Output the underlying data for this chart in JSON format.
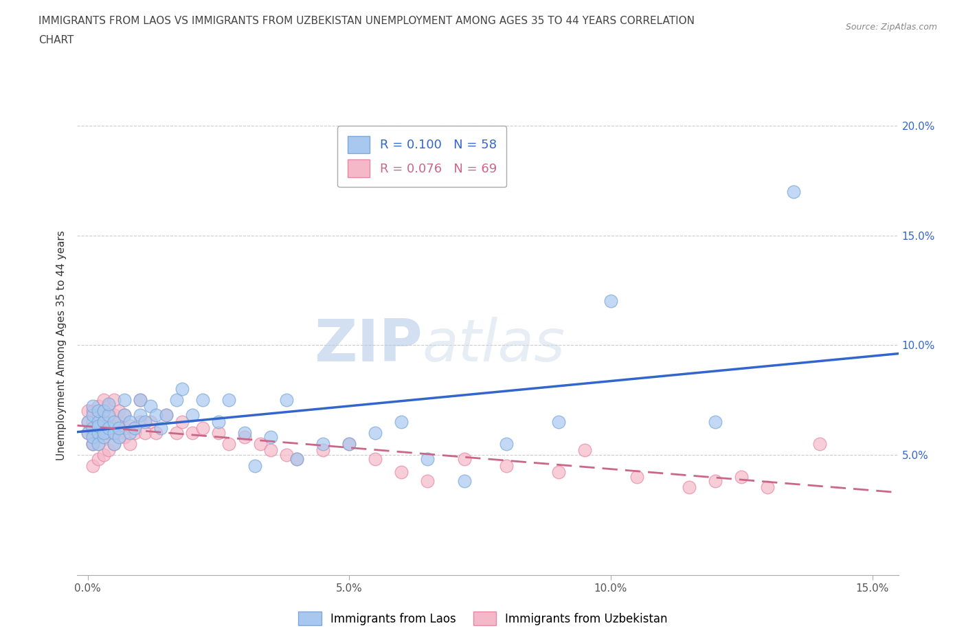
{
  "title_line1": "IMMIGRANTS FROM LAOS VS IMMIGRANTS FROM UZBEKISTAN UNEMPLOYMENT AMONG AGES 35 TO 44 YEARS CORRELATION",
  "title_line2": "CHART",
  "source_text": "Source: ZipAtlas.com",
  "ylabel": "Unemployment Among Ages 35 to 44 years",
  "xlabel": "",
  "xlim": [
    -0.002,
    0.155
  ],
  "ylim": [
    -0.005,
    0.205
  ],
  "xticks": [
    0.0,
    0.05,
    0.1,
    0.15
  ],
  "yticks": [
    0.05,
    0.1,
    0.15,
    0.2
  ],
  "xticklabels": [
    "0.0%",
    "5.0%",
    "10.0%",
    "15.0%"
  ],
  "yticklabels": [
    "5.0%",
    "10.0%",
    "15.0%",
    "20.0%"
  ],
  "laos_color": "#a8c8f0",
  "uzbekistan_color": "#f5b8c8",
  "laos_edge_color": "#7ba8d8",
  "uzbekistan_edge_color": "#e888a8",
  "laos_line_color": "#3366cc",
  "uzbekistan_line_color": "#cc6688",
  "laos_R": 0.1,
  "laos_N": 58,
  "uzbekistan_R": 0.076,
  "uzbekistan_N": 69,
  "watermark_zip": "ZIP",
  "watermark_atlas": "atlas",
  "background_color": "#ffffff",
  "grid_color": "#cccccc",
  "laos_x": [
    0.0,
    0.0,
    0.001,
    0.001,
    0.001,
    0.001,
    0.001,
    0.002,
    0.002,
    0.002,
    0.002,
    0.002,
    0.003,
    0.003,
    0.003,
    0.003,
    0.004,
    0.004,
    0.004,
    0.005,
    0.005,
    0.005,
    0.006,
    0.006,
    0.007,
    0.007,
    0.008,
    0.008,
    0.009,
    0.01,
    0.01,
    0.011,
    0.012,
    0.013,
    0.014,
    0.015,
    0.017,
    0.018,
    0.02,
    0.022,
    0.025,
    0.027,
    0.03,
    0.032,
    0.035,
    0.038,
    0.04,
    0.045,
    0.05,
    0.055,
    0.06,
    0.065,
    0.072,
    0.08,
    0.09,
    0.1,
    0.12,
    0.135
  ],
  "laos_y": [
    0.065,
    0.06,
    0.055,
    0.062,
    0.068,
    0.072,
    0.058,
    0.06,
    0.065,
    0.055,
    0.07,
    0.063,
    0.058,
    0.065,
    0.07,
    0.06,
    0.062,
    0.068,
    0.073,
    0.055,
    0.06,
    0.065,
    0.058,
    0.062,
    0.068,
    0.075,
    0.06,
    0.065,
    0.062,
    0.068,
    0.075,
    0.065,
    0.072,
    0.068,
    0.062,
    0.068,
    0.075,
    0.08,
    0.068,
    0.075,
    0.065,
    0.075,
    0.06,
    0.045,
    0.058,
    0.075,
    0.048,
    0.055,
    0.055,
    0.06,
    0.065,
    0.048,
    0.038,
    0.055,
    0.065,
    0.12,
    0.065,
    0.17
  ],
  "uzbekistan_x": [
    0.0,
    0.0,
    0.0,
    0.001,
    0.001,
    0.001,
    0.001,
    0.001,
    0.001,
    0.002,
    0.002,
    0.002,
    0.002,
    0.002,
    0.002,
    0.003,
    0.003,
    0.003,
    0.003,
    0.003,
    0.004,
    0.004,
    0.004,
    0.004,
    0.005,
    0.005,
    0.005,
    0.005,
    0.006,
    0.006,
    0.006,
    0.007,
    0.007,
    0.007,
    0.008,
    0.008,
    0.009,
    0.01,
    0.01,
    0.011,
    0.012,
    0.013,
    0.015,
    0.017,
    0.018,
    0.02,
    0.022,
    0.025,
    0.027,
    0.03,
    0.033,
    0.035,
    0.038,
    0.04,
    0.045,
    0.05,
    0.055,
    0.06,
    0.065,
    0.072,
    0.08,
    0.09,
    0.095,
    0.105,
    0.115,
    0.12,
    0.125,
    0.13,
    0.14
  ],
  "uzbekistan_y": [
    0.06,
    0.065,
    0.07,
    0.045,
    0.055,
    0.06,
    0.065,
    0.07,
    0.055,
    0.048,
    0.055,
    0.062,
    0.068,
    0.072,
    0.06,
    0.05,
    0.058,
    0.065,
    0.07,
    0.075,
    0.052,
    0.06,
    0.065,
    0.072,
    0.055,
    0.06,
    0.068,
    0.075,
    0.06,
    0.065,
    0.07,
    0.058,
    0.062,
    0.068,
    0.055,
    0.063,
    0.06,
    0.065,
    0.075,
    0.06,
    0.065,
    0.06,
    0.068,
    0.06,
    0.065,
    0.06,
    0.062,
    0.06,
    0.055,
    0.058,
    0.055,
    0.052,
    0.05,
    0.048,
    0.052,
    0.055,
    0.048,
    0.042,
    0.038,
    0.048,
    0.045,
    0.042,
    0.052,
    0.04,
    0.035,
    0.038,
    0.04,
    0.035,
    0.055
  ]
}
